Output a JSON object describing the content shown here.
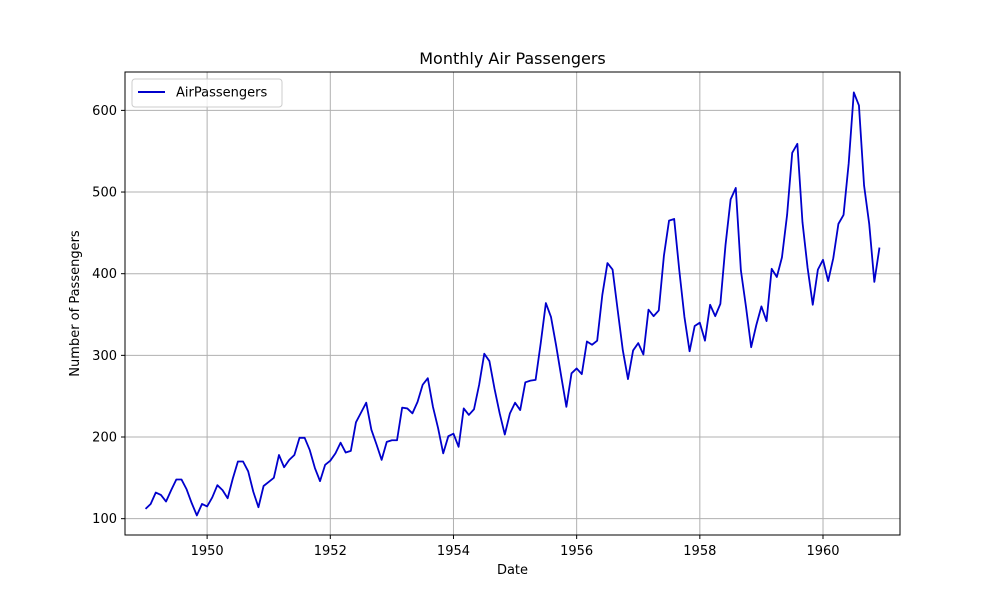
{
  "chart_data": {
    "type": "line",
    "title": "Monthly Air Passengers",
    "xlabel": "Date",
    "ylabel": "Number of Passengers",
    "x_start": "1949-01",
    "x_frequency": "monthly",
    "xlim": [
      "1948-09",
      "1961-04"
    ],
    "ylim": [
      80,
      647
    ],
    "xticks": [
      "1950",
      "1952",
      "1954",
      "1956",
      "1958",
      "1960"
    ],
    "yticks": [
      100,
      200,
      300,
      400,
      500,
      600
    ],
    "grid": true,
    "legend": {
      "position": "top-left"
    },
    "series": [
      {
        "name": "AirPassengers",
        "color": "#0000cc",
        "values": [
          112,
          118,
          132,
          129,
          121,
          135,
          148,
          148,
          136,
          119,
          104,
          118,
          115,
          126,
          141,
          135,
          125,
          149,
          170,
          170,
          158,
          133,
          114,
          140,
          145,
          150,
          178,
          163,
          172,
          178,
          199,
          199,
          184,
          162,
          146,
          166,
          171,
          180,
          193,
          181,
          183,
          218,
          230,
          242,
          209,
          191,
          172,
          194,
          196,
          196,
          236,
          235,
          229,
          243,
          264,
          272,
          237,
          211,
          180,
          201,
          204,
          188,
          235,
          227,
          234,
          264,
          302,
          293,
          259,
          229,
          203,
          229,
          242,
          233,
          267,
          269,
          270,
          315,
          364,
          347,
          312,
          274,
          237,
          278,
          284,
          277,
          317,
          313,
          318,
          374,
          413,
          405,
          355,
          306,
          271,
          306,
          315,
          301,
          356,
          348,
          355,
          422,
          465,
          467,
          404,
          347,
          305,
          336,
          340,
          318,
          362,
          348,
          363,
          435,
          491,
          505,
          404,
          359,
          310,
          337,
          360,
          342,
          406,
          396,
          420,
          472,
          548,
          559,
          463,
          407,
          362,
          405,
          417,
          391,
          419,
          461,
          472,
          535,
          622,
          606,
          508,
          461,
          390,
          432
        ]
      }
    ]
  }
}
